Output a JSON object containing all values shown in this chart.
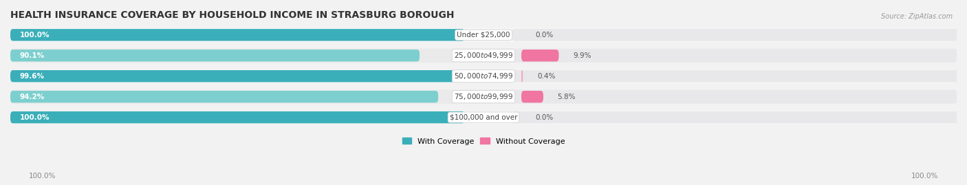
{
  "title": "HEALTH INSURANCE COVERAGE BY HOUSEHOLD INCOME IN STRASBURG BOROUGH",
  "source": "Source: ZipAtlas.com",
  "categories": [
    "Under $25,000",
    "$25,000 to $49,999",
    "$50,000 to $74,999",
    "$75,000 to $99,999",
    "$100,000 and over"
  ],
  "with_coverage": [
    100.0,
    90.1,
    99.6,
    94.2,
    100.0
  ],
  "without_coverage": [
    0.0,
    9.9,
    0.4,
    5.8,
    0.0
  ],
  "color_with_dark": "#3AAFB9",
  "color_with_light": "#7DCFCF",
  "color_without_dark": "#F075A0",
  "color_without_light": "#F4AABB",
  "track_color": "#E8E8EA",
  "row_bg_odd": "#F5F5F5",
  "row_bg_even": "#EAEAEA",
  "bg_color": "#F2F2F2",
  "title_fontsize": 10,
  "label_fontsize": 7.5,
  "cat_fontsize": 7.5,
  "tick_fontsize": 7.5,
  "legend_fontsize": 8,
  "x_left_label": "100.0%",
  "x_right_label": "100.0%"
}
